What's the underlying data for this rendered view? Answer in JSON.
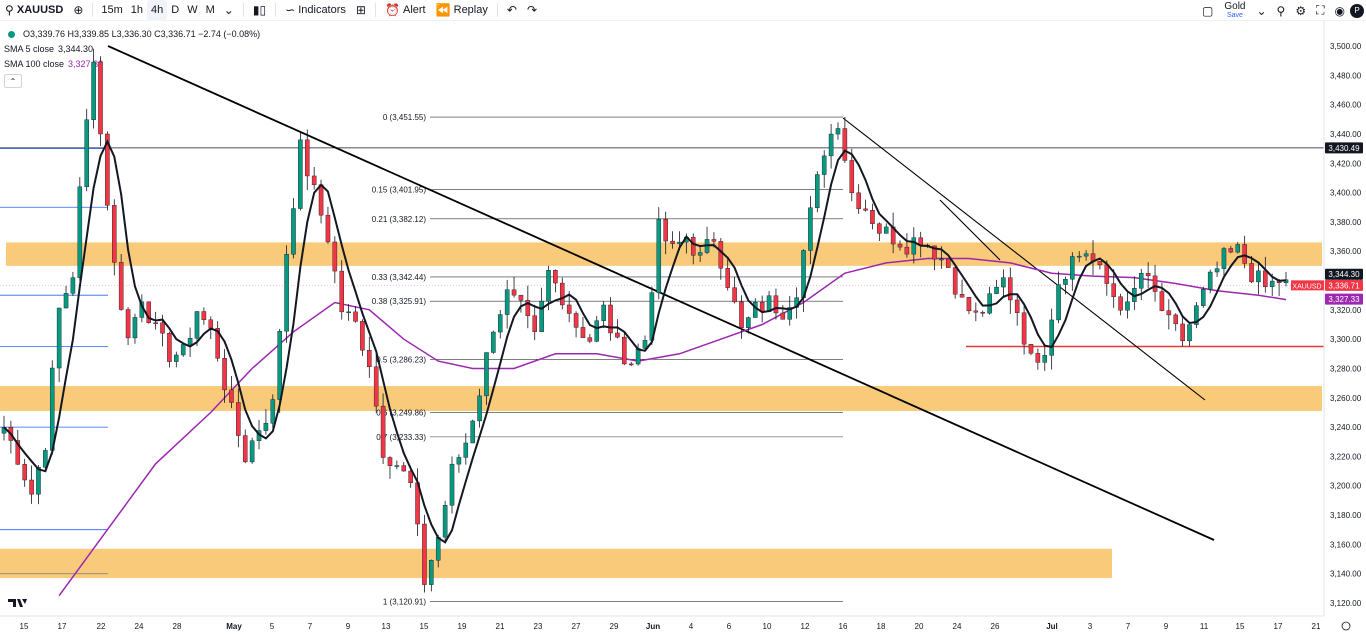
{
  "toolbar": {
    "symbol": "XAUUSD",
    "timeframes": [
      "15m",
      "1h",
      "4h",
      "D",
      "W",
      "M"
    ],
    "active_timeframe": "4h",
    "indicators_label": "Indicators",
    "alert_label": "Alert",
    "replay_label": "Replay",
    "layout_name": "Gold",
    "save_label": "Save",
    "avatar_initial": "P"
  },
  "legend": {
    "ohlc": "O3,339.76  H3,339.85  L3,336.30  C3,336.71  −2.74 (−0.08%)",
    "sma5": "SMA 5 close",
    "sma5_value": "3,344.30",
    "sma100": "SMA 100 close",
    "sma100_value": "3,327.33"
  },
  "currency": "USD",
  "chart_data": {
    "type": "candlestick",
    "symbol": "XAUUSD",
    "interval": "4h",
    "ylim": [
      3110,
      3510
    ],
    "y_ticks": [
      "3,500.00",
      "3,480.00",
      "3,460.00",
      "3,440.00",
      "3,420.00",
      "3,400.00",
      "3,380.00",
      "3,360.00",
      "3,340.00",
      "3,320.00",
      "3,300.00",
      "3,280.00",
      "3,260.00",
      "3,240.00",
      "3,220.00",
      "3,200.00",
      "3,180.00",
      "3,160.00",
      "3,140.00",
      "3,120.00"
    ],
    "x_ticks": [
      "15",
      "17",
      "22",
      "24",
      "28",
      "May",
      "5",
      "7",
      "9",
      "13",
      "15",
      "19",
      "21",
      "23",
      "27",
      "29",
      "Jun",
      "4",
      "6",
      "10",
      "12",
      "16",
      "18",
      "20",
      "24",
      "26",
      "Jul",
      "3",
      "7",
      "9",
      "11",
      "15",
      "17",
      "21"
    ],
    "close_path": [
      [
        0,
        3240
      ],
      [
        2,
        3220
      ],
      [
        4,
        3195
      ],
      [
        6,
        3230
      ],
      [
        8,
        3320
      ],
      [
        10,
        3345
      ],
      [
        11,
        3400
      ],
      [
        13,
        3495
      ],
      [
        14,
        3440
      ],
      [
        16,
        3350
      ],
      [
        18,
        3300
      ],
      [
        20,
        3330
      ],
      [
        22,
        3305
      ],
      [
        24,
        3290
      ],
      [
        26,
        3290
      ],
      [
        28,
        3320
      ],
      [
        30,
        3305
      ],
      [
        31,
        3290
      ],
      [
        33,
        3250
      ],
      [
        35,
        3220
      ],
      [
        37,
        3240
      ],
      [
        39,
        3255
      ],
      [
        41,
        3360
      ],
      [
        43,
        3430
      ],
      [
        45,
        3400
      ],
      [
        47,
        3370
      ],
      [
        49,
        3320
      ],
      [
        51,
        3310
      ],
      [
        53,
        3285
      ],
      [
        55,
        3225
      ],
      [
        57,
        3215
      ],
      [
        59,
        3200
      ],
      [
        61,
        3135
      ],
      [
        63,
        3165
      ],
      [
        65,
        3210
      ],
      [
        67,
        3230
      ],
      [
        69,
        3265
      ],
      [
        71,
        3310
      ],
      [
        73,
        3330
      ],
      [
        75,
        3320
      ],
      [
        77,
        3300
      ],
      [
        79,
        3345
      ],
      [
        81,
        3330
      ],
      [
        83,
        3310
      ],
      [
        85,
        3300
      ],
      [
        87,
        3320
      ],
      [
        89,
        3295
      ],
      [
        91,
        3285
      ],
      [
        93,
        3300
      ],
      [
        95,
        3375
      ],
      [
        97,
        3360
      ],
      [
        99,
        3370
      ],
      [
        101,
        3355
      ],
      [
        103,
        3370
      ],
      [
        105,
        3340
      ],
      [
        107,
        3305
      ],
      [
        109,
        3320
      ],
      [
        111,
        3325
      ],
      [
        113,
        3320
      ],
      [
        115,
        3335
      ],
      [
        117,
        3385
      ],
      [
        119,
        3430
      ],
      [
        121,
        3450
      ],
      [
        123,
        3400
      ],
      [
        125,
        3390
      ],
      [
        127,
        3375
      ],
      [
        129,
        3370
      ],
      [
        131,
        3365
      ],
      [
        133,
        3370
      ],
      [
        135,
        3360
      ],
      [
        137,
        3350
      ],
      [
        139,
        3325
      ],
      [
        141,
        3315
      ],
      [
        143,
        3325
      ],
      [
        145,
        3340
      ],
      [
        147,
        3320
      ],
      [
        149,
        3285
      ],
      [
        151,
        3295
      ],
      [
        153,
        3340
      ],
      [
        155,
        3355
      ],
      [
        157,
        3360
      ],
      [
        159,
        3345
      ],
      [
        161,
        3330
      ],
      [
        163,
        3320
      ],
      [
        165,
        3345
      ],
      [
        167,
        3330
      ],
      [
        169,
        3310
      ],
      [
        171,
        3300
      ],
      [
        173,
        3320
      ],
      [
        175,
        3340
      ],
      [
        177,
        3355
      ],
      [
        179,
        3360
      ],
      [
        181,
        3345
      ],
      [
        183,
        3335
      ],
      [
        185,
        3340
      ],
      [
        186,
        3337
      ]
    ],
    "sma5_color": "#131722",
    "sma100_path": [
      [
        8,
        3125
      ],
      [
        15,
        3170
      ],
      [
        22,
        3215
      ],
      [
        30,
        3250
      ],
      [
        36,
        3280
      ],
      [
        42,
        3305
      ],
      [
        48,
        3325
      ],
      [
        53,
        3320
      ],
      [
        58,
        3300
      ],
      [
        63,
        3285
      ],
      [
        68,
        3280
      ],
      [
        74,
        3280
      ],
      [
        80,
        3290
      ],
      [
        86,
        3290
      ],
      [
        92,
        3285
      ],
      [
        98,
        3290
      ],
      [
        104,
        3300
      ],
      [
        110,
        3310
      ],
      [
        116,
        3325
      ],
      [
        122,
        3345
      ],
      [
        128,
        3352
      ],
      [
        134,
        3355
      ],
      [
        140,
        3355
      ],
      [
        146,
        3352
      ],
      [
        152,
        3345
      ],
      [
        158,
        3343
      ],
      [
        164,
        3342
      ],
      [
        170,
        3338
      ],
      [
        176,
        3333
      ],
      [
        182,
        3330
      ],
      [
        186,
        3327
      ]
    ],
    "sma100_color": "#9c27b0",
    "fibonacci": [
      {
        "label": "0 (3,451.55)",
        "price": 3451.55
      },
      {
        "label": "0.15 (3,401.95)",
        "price": 3401.95
      },
      {
        "label": "0.21 (3,382.12)",
        "price": 3382.12
      },
      {
        "label": "0.33 (3,342.44)",
        "price": 3342.44
      },
      {
        "label": "0.38 (3,325.91)",
        "price": 3325.91
      },
      {
        "label": "0.5 (3,286.23)",
        "price": 3286.23
      },
      {
        "label": "0.6 (3,249.86)",
        "price": 3249.86
      },
      {
        "label": "0.7 (3,233.33)",
        "price": 3233.33
      },
      {
        "label": "1 (3,120.91)",
        "price": 3120.91
      }
    ],
    "zones": [
      {
        "top": 3366,
        "bottom": 3350,
        "color": "#f7c46c"
      },
      {
        "top": 3268,
        "bottom": 3251,
        "color": "#f7c46c"
      },
      {
        "top": 3157,
        "bottom": 3137,
        "color": "#f7c46c"
      }
    ],
    "horizontal_lines": [
      {
        "price": 3430.49,
        "color": "#131722"
      },
      {
        "price": 3295,
        "color": "#e53935"
      }
    ],
    "price_labels": [
      {
        "text": "3,430.49",
        "price": 3430.49,
        "bg": "#131722",
        "fg": "#ffffff"
      },
      {
        "text": "3,344.30",
        "price": 3344.3,
        "bg": "#131722",
        "fg": "#ffffff"
      },
      {
        "text": "3,336.71",
        "price": 3336.71,
        "bg": "#f23645",
        "fg": "#ffffff"
      },
      {
        "text": "3,327.33",
        "price": 3327.33,
        "bg": "#9c27b0",
        "fg": "#ffffff"
      }
    ],
    "symbol_tag": "XAUUSD"
  }
}
